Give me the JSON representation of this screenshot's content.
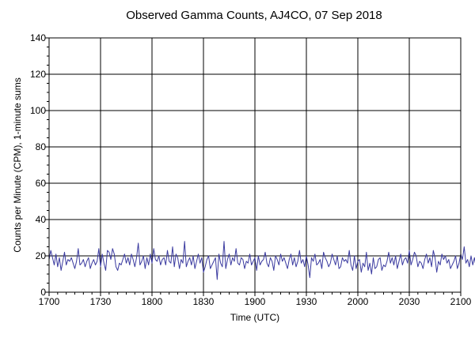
{
  "chart_data": {
    "type": "line",
    "title": "Observed Gamma Counts, AJ4CO, 07 Sep 2018",
    "xlabel": "Time (UTC)",
    "ylabel": "Counts per Minute (CPM), 1-minute sums",
    "x_ticks": [
      "1700",
      "1730",
      "1800",
      "1830",
      "1900",
      "1930",
      "2000",
      "2030",
      "2100"
    ],
    "y_ticks": [
      "0",
      "20",
      "40",
      "60",
      "80",
      "100",
      "120",
      "140"
    ],
    "xlim": [
      "17:00",
      "21:00"
    ],
    "ylim": [
      0,
      140
    ],
    "grid": true,
    "series_color": "#3b3ba0",
    "series": [
      {
        "x_start": "17:00",
        "x_step_minutes": 1,
        "values": [
          18,
          23,
          19,
          15,
          21,
          14,
          19,
          12,
          17,
          22,
          15,
          18,
          17,
          19,
          16,
          13,
          17,
          24,
          15,
          16,
          18,
          14,
          17,
          19,
          13,
          16,
          18,
          15,
          17,
          24,
          14,
          21,
          16,
          12,
          23,
          22,
          18,
          24,
          21,
          14,
          12,
          16,
          15,
          18,
          21,
          16,
          19,
          15,
          21,
          18,
          14,
          19,
          27,
          15,
          17,
          20,
          13,
          19,
          15,
          21,
          16,
          24,
          18,
          17,
          20,
          15,
          18,
          19,
          15,
          23,
          17,
          16,
          25,
          14,
          21,
          19,
          13,
          18,
          16,
          28,
          14,
          17,
          19,
          15,
          20,
          13,
          17,
          21,
          16,
          19,
          11,
          14,
          18,
          20,
          13,
          15,
          17,
          19,
          7,
          21,
          16,
          14,
          28,
          13,
          18,
          21,
          15,
          19,
          17,
          24,
          16,
          15,
          19,
          18,
          13,
          17,
          16,
          21,
          15,
          17,
          19,
          12,
          20,
          15,
          17,
          18,
          22,
          16,
          14,
          19,
          17,
          12,
          20,
          18,
          15,
          21,
          17,
          19,
          16,
          13,
          18,
          21,
          15,
          19,
          14,
          17,
          23,
          16,
          18,
          14,
          20,
          15,
          8,
          19,
          17,
          21,
          15,
          16,
          18,
          13,
          22,
          19,
          17,
          14,
          16,
          21,
          18,
          15,
          20,
          13,
          14,
          19,
          17,
          18,
          16,
          23,
          15,
          12,
          20,
          13,
          17,
          18,
          11,
          16,
          14,
          22,
          12,
          16,
          10,
          19,
          13,
          14,
          18,
          19,
          12,
          15,
          14,
          17,
          22,
          16,
          19,
          15,
          20,
          13,
          17,
          21,
          15,
          18,
          19,
          16,
          23,
          15,
          18,
          22,
          20,
          14,
          17,
          16,
          13,
          18,
          21,
          16,
          19,
          14,
          23,
          19,
          11,
          17,
          15,
          21,
          18,
          20,
          16,
          18,
          13,
          15,
          17,
          20,
          13,
          16,
          21,
          18,
          25,
          16,
          18,
          14,
          20,
          15,
          19,
          13,
          26,
          11,
          17,
          22,
          20,
          15
        ]
      }
    ]
  }
}
